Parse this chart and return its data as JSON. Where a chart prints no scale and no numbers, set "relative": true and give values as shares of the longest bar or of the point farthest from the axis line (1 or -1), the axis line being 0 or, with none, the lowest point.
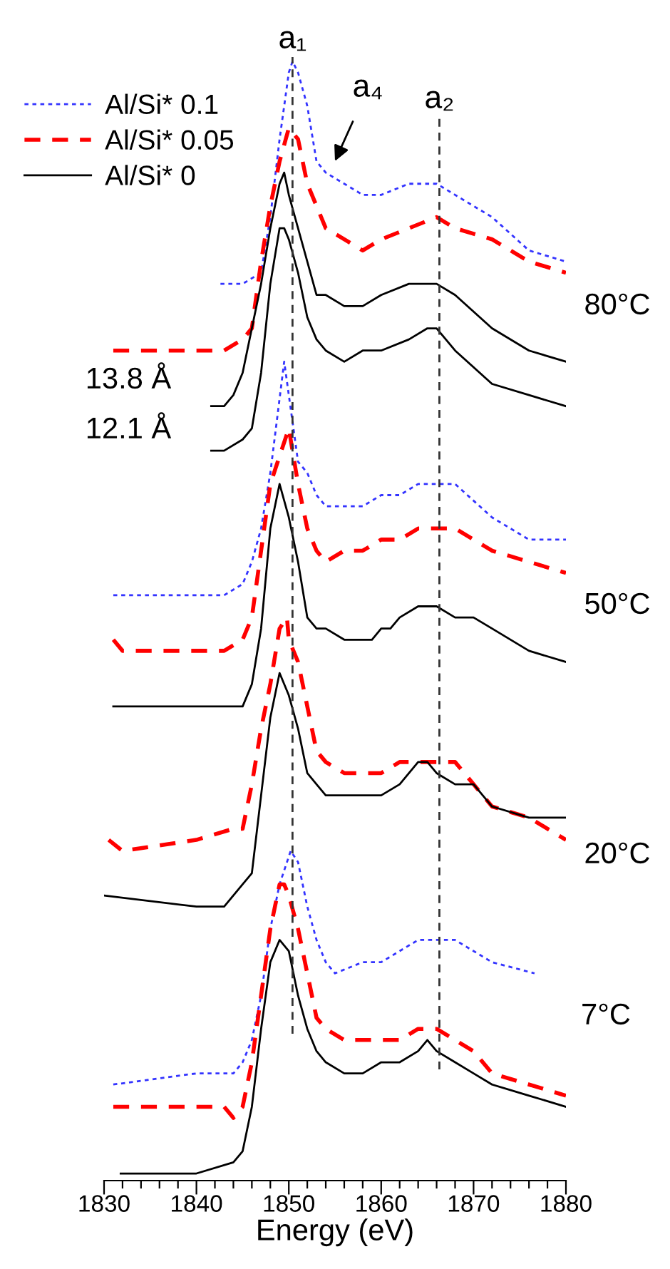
{
  "chart_data": {
    "type": "line",
    "relative": true,
    "xlabel": "Energy (eV)",
    "xlim": [
      1830,
      1880
    ],
    "xticks": [
      1830,
      {
        "value": 1832,
        "label": null
      },
      {
        "value": 1834,
        "label": null
      },
      {
        "value": 1836,
        "label": null
      },
      {
        "value": 1838,
        "label": null
      },
      1840,
      {
        "value": 1842,
        "label": null
      },
      {
        "value": 1844,
        "label": null
      },
      {
        "value": 1846,
        "label": null
      },
      {
        "value": 1848,
        "label": null
      },
      1850,
      {
        "value": 1852,
        "label": null
      },
      {
        "value": 1854,
        "label": null
      },
      {
        "value": 1856,
        "label": null
      },
      {
        "value": 1858,
        "label": null
      },
      1860,
      {
        "value": 1862,
        "label": null
      },
      {
        "value": 1864,
        "label": null
      },
      {
        "value": 1866,
        "label": null
      },
      {
        "value": 1868,
        "label": null
      },
      1870,
      {
        "value": 1872,
        "label": null
      },
      {
        "value": 1874,
        "label": null
      },
      {
        "value": 1876,
        "label": null
      },
      {
        "value": 1878,
        "label": null
      },
      1880
    ],
    "tick_labels": "x",
    "grid": false,
    "legend": "top left",
    "marker": "none",
    "series": [
      {
        "name": "Al/Si* 0.1",
        "color": "#3333ff",
        "line_style": "dotted",
        "x": [
          1842.6,
          1845,
          1847,
          1848,
          1849,
          1850,
          1850.4,
          1851,
          1852,
          1853,
          1854,
          1856,
          1858,
          1860,
          1863,
          1866,
          1868,
          1872,
          1876,
          1880
        ],
        "values": [
          0.8,
          0.8,
          0.81,
          0.86,
          0.93,
          0.99,
          1.0,
          0.99,
          0.96,
          0.91,
          0.9,
          0.89,
          0.88,
          0.88,
          0.89,
          0.89,
          0.88,
          0.86,
          0.83,
          0.82
        ]
      },
      {
        "name": "Al/Si* 0.05",
        "color": "#ff0000",
        "line_style": "dashed",
        "x": [
          1831,
          1840,
          1843,
          1845,
          1846,
          1847,
          1848,
          1849,
          1850,
          1851,
          1852,
          1853,
          1854,
          1856,
          1858,
          1860,
          1863,
          1866,
          1868,
          1872,
          1876,
          1880
        ],
        "values": [
          0.74,
          0.74,
          0.74,
          0.75,
          0.76,
          0.82,
          0.87,
          0.91,
          0.94,
          0.93,
          0.89,
          0.87,
          0.85,
          0.84,
          0.83,
          0.84,
          0.85,
          0.86,
          0.85,
          0.84,
          0.82,
          0.81
        ]
      },
      {
        "name": "Al/Si* 0",
        "color": "#000000",
        "line_style": "solid",
        "x": [
          1841.6,
          1843,
          1844,
          1845,
          1846,
          1847,
          1848,
          1849,
          1849.5,
          1850,
          1851,
          1852,
          1853,
          1854,
          1856,
          1858,
          1860,
          1863,
          1865,
          1866,
          1868,
          1872,
          1876,
          1880
        ],
        "values": [
          0.69,
          0.69,
          0.7,
          0.72,
          0.76,
          0.8,
          0.85,
          0.89,
          0.9,
          0.88,
          0.85,
          0.82,
          0.79,
          0.79,
          0.78,
          0.78,
          0.79,
          0.8,
          0.8,
          0.8,
          0.79,
          0.76,
          0.74,
          0.73
        ]
      },
      {
        "color": "#000000",
        "line_style": "solid",
        "x": [
          1841.6,
          1843,
          1845,
          1846,
          1847,
          1848,
          1849,
          1849.5,
          1850,
          1851,
          1852,
          1853,
          1854,
          1856,
          1858,
          1860,
          1863,
          1865,
          1866,
          1868,
          1872,
          1876,
          1880
        ],
        "values": [
          0.65,
          0.65,
          0.66,
          0.67,
          0.72,
          0.8,
          0.85,
          0.85,
          0.84,
          0.81,
          0.77,
          0.75,
          0.74,
          0.73,
          0.74,
          0.74,
          0.75,
          0.76,
          0.76,
          0.74,
          0.71,
          0.7,
          0.69
        ]
      },
      {
        "color": "#3333ff",
        "line_style": "dotted",
        "x": [
          1831,
          1840,
          1843,
          1845,
          1846,
          1847,
          1848,
          1849.5,
          1851,
          1852,
          1853,
          1854,
          1856,
          1858,
          1860,
          1862,
          1864,
          1866,
          1868,
          1872,
          1876,
          1880
        ],
        "values": [
          0.52,
          0.52,
          0.52,
          0.53,
          0.55,
          0.58,
          0.63,
          0.73,
          0.64,
          0.63,
          0.61,
          0.6,
          0.6,
          0.6,
          0.61,
          0.61,
          0.62,
          0.62,
          0.62,
          0.59,
          0.57,
          0.57
        ]
      },
      {
        "color": "#ff0000",
        "line_style": "dashed",
        "x": [
          1831,
          1832,
          1840,
          1841,
          1843,
          1845,
          1846,
          1847,
          1848,
          1850,
          1851,
          1852,
          1853,
          1854,
          1856,
          1858,
          1860,
          1862,
          1864,
          1866,
          1868,
          1870,
          1872,
          1876,
          1880
        ],
        "values": [
          0.48,
          0.47,
          0.47,
          0.47,
          0.47,
          0.48,
          0.5,
          0.56,
          0.62,
          0.67,
          0.62,
          0.58,
          0.56,
          0.55,
          0.56,
          0.56,
          0.57,
          0.57,
          0.58,
          0.58,
          0.58,
          0.57,
          0.56,
          0.55,
          0.54
        ]
      },
      {
        "color": "#000000",
        "line_style": "solid",
        "x": [
          1831,
          1840,
          1844,
          1845,
          1846,
          1847,
          1848,
          1849,
          1850,
          1851,
          1852,
          1853,
          1854,
          1856,
          1858,
          1859,
          1860,
          1861,
          1862,
          1864,
          1866,
          1868,
          1870,
          1872,
          1876,
          1880
        ],
        "values": [
          0.42,
          0.42,
          0.42,
          0.42,
          0.44,
          0.49,
          0.58,
          0.62,
          0.59,
          0.55,
          0.5,
          0.49,
          0.49,
          0.48,
          0.48,
          0.48,
          0.49,
          0.49,
          0.5,
          0.51,
          0.51,
          0.5,
          0.5,
          0.49,
          0.47,
          0.46
        ]
      },
      {
        "color": "#ff0000",
        "line_style": "dashed",
        "x": [
          1830.5,
          1832,
          1840,
          1844,
          1845,
          1846,
          1847,
          1848,
          1849,
          1849.8,
          1850,
          1851,
          1852,
          1853,
          1854,
          1856,
          1858,
          1860,
          1862,
          1864,
          1866,
          1868,
          1870,
          1872,
          1876,
          1880
        ],
        "values": [
          0.3,
          0.29,
          0.3,
          0.31,
          0.31,
          0.35,
          0.4,
          0.44,
          0.49,
          0.5,
          0.48,
          0.46,
          0.42,
          0.38,
          0.37,
          0.36,
          0.36,
          0.36,
          0.37,
          0.37,
          0.37,
          0.37,
          0.35,
          0.33,
          0.32,
          0.3
        ]
      },
      {
        "color": "#000000",
        "line_style": "solid",
        "x": [
          1830,
          1840,
          1843,
          1845,
          1846,
          1847,
          1848,
          1849,
          1850,
          1851,
          1852,
          1853,
          1854,
          1856,
          1858,
          1860,
          1862,
          1864,
          1865,
          1866,
          1868,
          1870,
          1872,
          1876,
          1880
        ],
        "values": [
          0.25,
          0.24,
          0.24,
          0.26,
          0.27,
          0.34,
          0.41,
          0.45,
          0.43,
          0.4,
          0.36,
          0.35,
          0.34,
          0.34,
          0.34,
          0.34,
          0.35,
          0.37,
          0.37,
          0.36,
          0.35,
          0.35,
          0.33,
          0.32,
          0.32
        ]
      },
      {
        "color": "#3333ff",
        "line_style": "dotted",
        "x": [
          1831,
          1840,
          1844,
          1845,
          1846,
          1847,
          1848,
          1849,
          1850.2,
          1851,
          1852,
          1853,
          1854,
          1855,
          1858,
          1860,
          1862,
          1864,
          1866,
          1868,
          1870,
          1872,
          1876.6
        ],
        "values": [
          0.08,
          0.09,
          0.09,
          0.1,
          0.12,
          0.16,
          0.22,
          0.26,
          0.29,
          0.28,
          0.24,
          0.21,
          0.19,
          0.18,
          0.19,
          0.19,
          0.2,
          0.21,
          0.21,
          0.21,
          0.2,
          0.19,
          0.18
        ]
      },
      {
        "color": "#ff0000",
        "line_style": "dashed",
        "x": [
          1831,
          1840,
          1843,
          1844,
          1845,
          1846,
          1847,
          1848,
          1849,
          1849.5,
          1850,
          1851,
          1852,
          1853,
          1854,
          1856,
          1858,
          1860,
          1862,
          1864,
          1866,
          1868,
          1870,
          1872,
          1876,
          1880
        ],
        "values": [
          0.06,
          0.06,
          0.06,
          0.05,
          0.06,
          0.1,
          0.16,
          0.22,
          0.26,
          0.26,
          0.25,
          0.22,
          0.18,
          0.14,
          0.13,
          0.12,
          0.12,
          0.12,
          0.12,
          0.13,
          0.13,
          0.12,
          0.11,
          0.09,
          0.08,
          0.07
        ]
      },
      {
        "color": "#000000",
        "line_style": "solid",
        "x": [
          1831.8,
          1840,
          1844,
          1845,
          1846,
          1847,
          1848,
          1849,
          1850,
          1851,
          1852,
          1853,
          1854,
          1856,
          1858,
          1860,
          1862,
          1864,
          1865,
          1866,
          1868,
          1870,
          1872,
          1876,
          1880
        ],
        "values": [
          0.0,
          0.0,
          0.01,
          0.02,
          0.06,
          0.13,
          0.19,
          0.21,
          0.2,
          0.16,
          0.13,
          0.11,
          0.1,
          0.09,
          0.09,
          0.1,
          0.1,
          0.11,
          0.12,
          0.11,
          0.1,
          0.09,
          0.08,
          0.07,
          0.06
        ]
      }
    ],
    "ref_lines": [
      {
        "axis": "x",
        "value": 1850.4,
        "label": "a₁",
        "color": "#333333",
        "line_style": "dashed"
      },
      {
        "axis": "x",
        "value": 1866.3,
        "label": "a₂",
        "color": "#333333",
        "line_style": "dashed"
      }
    ],
    "annotations": [
      "80°C",
      "50°C",
      "20°C",
      "7°C",
      "13.8 Å",
      "12.1 Å",
      "a₄"
    ]
  }
}
